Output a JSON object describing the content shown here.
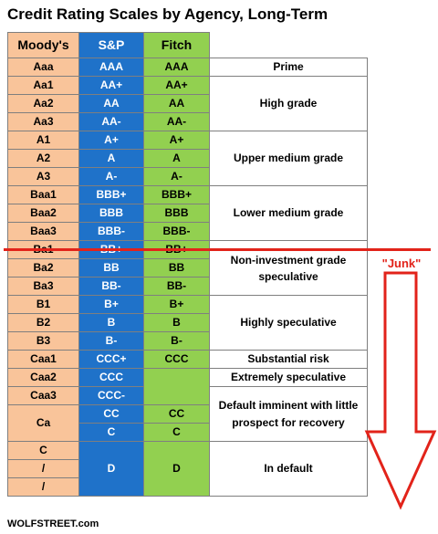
{
  "title": "Credit Rating Scales by Agency, Long-Term",
  "headers": {
    "moodys": "Moody's",
    "sp": "S&P",
    "fitch": "Fitch"
  },
  "rows": [
    {
      "moodys": "Aaa",
      "sp": "AAA",
      "fitch": "AAA"
    },
    {
      "moodys": "Aa1",
      "sp": "AA+",
      "fitch": "AA+"
    },
    {
      "moodys": "Aa2",
      "sp": "AA",
      "fitch": "AA"
    },
    {
      "moodys": "Aa3",
      "sp": "AA-",
      "fitch": "AA-"
    },
    {
      "moodys": "A1",
      "sp": "A+",
      "fitch": "A+"
    },
    {
      "moodys": "A2",
      "sp": "A",
      "fitch": "A"
    },
    {
      "moodys": "A3",
      "sp": "A-",
      "fitch": "A-"
    },
    {
      "moodys": "Baa1",
      "sp": "BBB+",
      "fitch": "BBB+"
    },
    {
      "moodys": "Baa2",
      "sp": "BBB",
      "fitch": "BBB"
    },
    {
      "moodys": "Baa3",
      "sp": "BBB-",
      "fitch": "BBB-"
    },
    {
      "moodys": "Ba1",
      "sp": "BB+",
      "fitch": "BB+"
    },
    {
      "moodys": "Ba2",
      "sp": "BB",
      "fitch": "BB"
    },
    {
      "moodys": "Ba3",
      "sp": "BB-",
      "fitch": "BB-"
    },
    {
      "moodys": "B1",
      "sp": "B+",
      "fitch": "B+"
    },
    {
      "moodys": "B2",
      "sp": "B",
      "fitch": "B"
    },
    {
      "moodys": "B3",
      "sp": "B-",
      "fitch": "B-"
    },
    {
      "moodys": "Caa1",
      "sp": "CCC+",
      "fitch": "CCC"
    },
    {
      "moodys": "Caa2",
      "sp": "CCC",
      "fitch": ""
    },
    {
      "moodys": "Caa3",
      "sp": "CCC-",
      "fitch": ""
    },
    {
      "moodys": "Ca",
      "sp": "CC",
      "fitch": "CC"
    },
    {
      "moodys": "",
      "sp": "C",
      "fitch": "C"
    },
    {
      "moodys": "C",
      "sp": "D",
      "fitch": "D"
    },
    {
      "moodys": "/",
      "sp": "",
      "fitch": ""
    },
    {
      "moodys": "/",
      "sp": "",
      "fitch": ""
    }
  ],
  "grades": {
    "prime": "Prime",
    "high_grade": "High grade",
    "upper_medium": "Upper medium grade",
    "lower_medium": "Lower medium grade",
    "non_investment": "Non-investment grade speculative",
    "highly_speculative": "Highly speculative",
    "substantial_risk": "Substantial risk",
    "extremely_speculative": "Extremely speculative",
    "default_imminent": "Default imminent with little prospect for recovery",
    "in_default": "In default"
  },
  "junk_label": "\"Junk\"",
  "footer": "WOLFSTREET.com",
  "colors": {
    "moodys": "#f9c49a",
    "sp": "#1f72c9",
    "fitch": "#92d050",
    "junk": "#e2231a"
  }
}
